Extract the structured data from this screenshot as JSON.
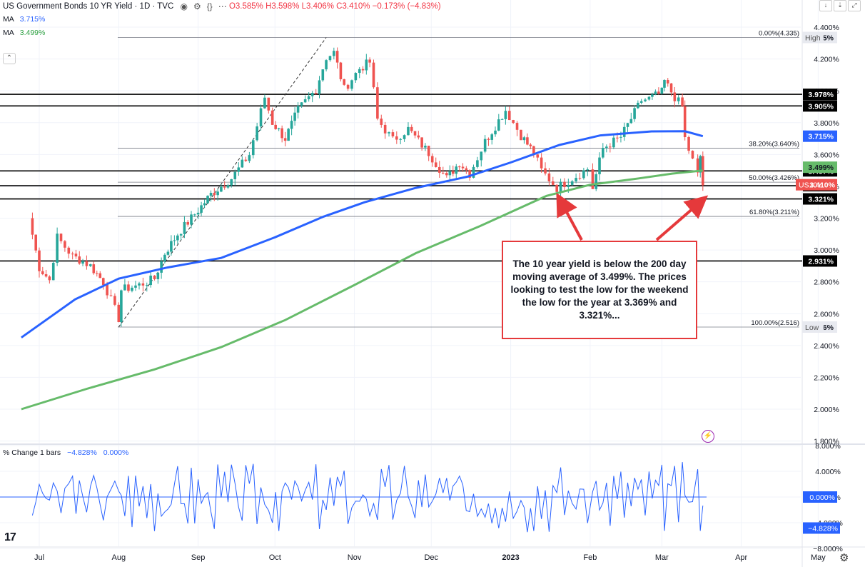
{
  "header": {
    "symbol_title": "US Government Bonds 10 YR Yield · 1D · TVC",
    "ohlc": "O3.585% H3.598% L3.406% C3.410% −0.173% (−4.83%)",
    "ma1_label": "MA",
    "ma1_value": "3.715%",
    "ma2_label": "MA",
    "ma2_value": "3.499%",
    "sub_label": "% Change 1 bars",
    "sub_val1": "−4.828%",
    "sub_val2": "0.000%"
  },
  "top_buttons": [
    "↓",
    "⇣",
    "⤢"
  ],
  "annotation": "The 10 year yield is below the 200 day moving average of 3.499%.  The prices looking to test the low for the weekend the low for the year at 3.369% and 3.321%...",
  "colors": {
    "up": "#26a69a",
    "down": "#ef5350",
    "ma_fast": "#2962ff",
    "ma_slow": "#66bb6a",
    "arrow": "#e5393b"
  },
  "chart_data": {
    "type": "line",
    "x_tick_labels": [
      "Jul",
      "Aug",
      "Sep",
      "Oct",
      "Nov",
      "Dec",
      "2023",
      "Feb",
      "Mar",
      "Apr",
      "May"
    ],
    "y_tick_labels": [
      "1.800%",
      "2.000%",
      "2.200%",
      "2.400%",
      "2.600%",
      "2.800%",
      "3.000%",
      "3.200%",
      "3.400%",
      "3.600%",
      "3.800%",
      "4.000%",
      "4.200%",
      "4.400%"
    ],
    "ylim": [
      1.79,
      4.45
    ],
    "price_points": [
      [
        "2022-06-27",
        3.2
      ],
      [
        "2022-07-01",
        2.89
      ],
      [
        "2022-07-05",
        2.81
      ],
      [
        "2022-07-08",
        3.08
      ],
      [
        "2022-07-14",
        2.96
      ],
      [
        "2022-07-18",
        2.93
      ],
      [
        "2022-07-21",
        2.9
      ],
      [
        "2022-07-26",
        2.8
      ],
      [
        "2022-08-01",
        2.57
      ],
      [
        "2022-08-02",
        2.75
      ],
      [
        "2022-08-09",
        2.78
      ],
      [
        "2022-08-15",
        2.82
      ],
      [
        "2022-08-19",
        2.98
      ],
      [
        "2022-08-24",
        3.1
      ],
      [
        "2022-09-01",
        3.25
      ],
      [
        "2022-09-06",
        3.35
      ],
      [
        "2022-09-14",
        3.45
      ],
      [
        "2022-09-21",
        3.6
      ],
      [
        "2022-09-27",
        3.96
      ],
      [
        "2022-09-30",
        3.8
      ],
      [
        "2022-10-05",
        3.7
      ],
      [
        "2022-10-10",
        3.88
      ],
      [
        "2022-10-17",
        4.01
      ],
      [
        "2022-10-21",
        4.21
      ],
      [
        "2022-10-24",
        4.24
      ],
      [
        "2022-10-28",
        4.01
      ],
      [
        "2022-11-03",
        4.14
      ],
      [
        "2022-11-07",
        4.18
      ],
      [
        "2022-11-10",
        3.82
      ],
      [
        "2022-11-16",
        3.69
      ],
      [
        "2022-11-22",
        3.76
      ],
      [
        "2022-11-30",
        3.61
      ],
      [
        "2022-12-07",
        3.45
      ],
      [
        "2022-12-12",
        3.55
      ],
      [
        "2022-12-16",
        3.48
      ],
      [
        "2022-12-22",
        3.68
      ],
      [
        "2022-12-30",
        3.88
      ],
      [
        "2023-01-05",
        3.72
      ],
      [
        "2023-01-10",
        3.61
      ],
      [
        "2023-01-13",
        3.5
      ],
      [
        "2023-01-19",
        3.39
      ],
      [
        "2023-01-25",
        3.45
      ],
      [
        "2023-01-31",
        3.51
      ],
      [
        "2023-02-02",
        3.39
      ],
      [
        "2023-02-06",
        3.64
      ],
      [
        "2023-02-13",
        3.71
      ],
      [
        "2023-02-21",
        3.94
      ],
      [
        "2023-02-24",
        3.95
      ],
      [
        "2023-03-01",
        3.99
      ],
      [
        "2023-03-02",
        4.06
      ],
      [
        "2023-03-06",
        3.96
      ],
      [
        "2023-03-09",
        3.9
      ],
      [
        "2023-03-10",
        3.7
      ],
      [
        "2023-03-13",
        3.56
      ],
      [
        "2023-03-15",
        3.47
      ],
      [
        "2023-03-16",
        3.59
      ],
      [
        "2023-03-17",
        3.41
      ]
    ],
    "ma_fast_points": [
      [
        "2022-06-24",
        2.45
      ],
      [
        "2022-07-15",
        2.69
      ],
      [
        "2022-08-01",
        2.82
      ],
      [
        "2022-08-20",
        2.89
      ],
      [
        "2022-09-10",
        2.95
      ],
      [
        "2022-10-01",
        3.08
      ],
      [
        "2022-10-20",
        3.21
      ],
      [
        "2022-11-05",
        3.3
      ],
      [
        "2022-11-25",
        3.39
      ],
      [
        "2022-12-15",
        3.46
      ],
      [
        "2023-01-01",
        3.55
      ],
      [
        "2023-01-20",
        3.66
      ],
      [
        "2023-02-05",
        3.72
      ],
      [
        "2023-02-25",
        3.745
      ],
      [
        "2023-03-10",
        3.746
      ],
      [
        "2023-03-17",
        3.715
      ]
    ],
    "ma_slow_points": [
      [
        "2022-06-24",
        2.0
      ],
      [
        "2022-07-20",
        2.13
      ],
      [
        "2022-08-15",
        2.25
      ],
      [
        "2022-09-10",
        2.39
      ],
      [
        "2022-10-05",
        2.56
      ],
      [
        "2022-11-01",
        2.78
      ],
      [
        "2022-11-25",
        2.98
      ],
      [
        "2022-12-20",
        3.15
      ],
      [
        "2023-01-15",
        3.34
      ],
      [
        "2023-02-01",
        3.41
      ],
      [
        "2023-02-20",
        3.45
      ],
      [
        "2023-03-05",
        3.48
      ],
      [
        "2023-03-17",
        3.499
      ]
    ],
    "horizontal_levels": [
      {
        "value": 3.978,
        "label": "3.978%"
      },
      {
        "value": 3.905,
        "label": "3.905%"
      },
      {
        "value": 3.497,
        "label": "3.497%"
      },
      {
        "value": 3.404,
        "label": "3.404%"
      },
      {
        "value": 3.321,
        "label": "3.321%"
      },
      {
        "value": 2.931,
        "label": "2.931%"
      }
    ],
    "fib_levels": [
      {
        "value": 4.335,
        "label": "0.00%(4.335)"
      },
      {
        "value": 3.64,
        "label": "38.20%(3.640%)"
      },
      {
        "value": 3.426,
        "label": "50.00%(3.426%)"
      },
      {
        "value": 3.211,
        "label": "61.80%(3.211%)"
      },
      {
        "value": 2.516,
        "label": "100.00%(2.516)"
      }
    ],
    "high_tag": {
      "label": "High",
      "value": "4.335%"
    },
    "low_tag": {
      "label": "Low",
      "value": "2.516%"
    },
    "ma_fast_tag": "3.715%",
    "ma_slow_tag": "3.499%",
    "last_price_tag": {
      "label": "US10Y",
      "value": "3.410%"
    },
    "sub_y_tick_labels": [
      "8.000%",
      "4.000%",
      "0.000%",
      "−4.000%",
      "−8.000%"
    ],
    "sub_current_tag": "−4.828%",
    "sub_zero_tag": "0.000%"
  }
}
